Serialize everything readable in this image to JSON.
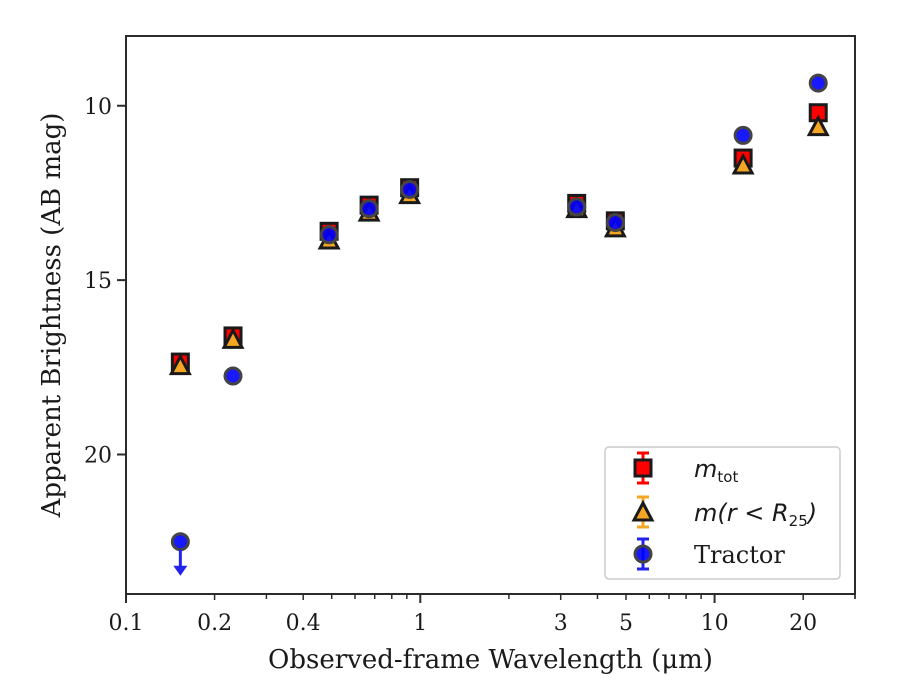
{
  "chart_data": {
    "type": "scatter",
    "xlabel": "Observed-frame Wavelength (μm)",
    "ylabel": "Apparent Brightness (AB mag)",
    "x_scale": "log",
    "xlim": [
      0.1,
      30
    ],
    "ylim": [
      24,
      8
    ],
    "y_inverted": true,
    "x_ticks": [
      {
        "value": 0.1,
        "label": "0.1"
      },
      {
        "value": 0.2,
        "label": "0.2"
      },
      {
        "value": 0.4,
        "label": "0.4"
      },
      {
        "value": 1,
        "label": "1"
      },
      {
        "value": 3,
        "label": "3"
      },
      {
        "value": 5,
        "label": "5"
      },
      {
        "value": 10,
        "label": "10"
      },
      {
        "value": 20,
        "label": "20"
      }
    ],
    "y_ticks": [
      {
        "value": 10,
        "label": "10"
      },
      {
        "value": 15,
        "label": "15"
      },
      {
        "value": 20,
        "label": "20"
      }
    ],
    "grid": false,
    "legend": "bottom-right",
    "series": [
      {
        "name": "m_tot",
        "label_main": "m",
        "label_sub": "tot",
        "marker": "square",
        "color": "#ff0000",
        "edge": "#1a1a1a",
        "x": [
          0.153,
          0.231,
          0.49,
          0.67,
          0.92,
          3.4,
          4.6,
          12.5,
          22.5
        ],
        "y": [
          17.35,
          16.6,
          13.6,
          12.85,
          12.35,
          12.8,
          13.3,
          11.5,
          10.2
        ]
      },
      {
        "name": "m(r < R25)",
        "label_main": "m(r < R",
        "label_sub": "25",
        "label_end": ")",
        "marker": "triangle",
        "color": "#f5a623",
        "edge": "#1a1a1a",
        "x": [
          0.153,
          0.231,
          0.49,
          0.67,
          0.92,
          3.4,
          4.6,
          12.5,
          22.5
        ],
        "y": [
          17.45,
          16.7,
          13.85,
          13.05,
          12.55,
          12.95,
          13.5,
          11.7,
          10.6
        ]
      },
      {
        "name": "Tractor",
        "label_main": "Tractor",
        "marker": "circle",
        "color": "#0000ff",
        "edge": "#444444",
        "x": [
          0.153,
          0.231,
          0.49,
          0.67,
          0.92,
          3.4,
          4.6,
          12.5,
          22.5
        ],
        "y": [
          22.5,
          17.75,
          13.7,
          12.95,
          12.4,
          12.9,
          13.35,
          10.85,
          9.35
        ],
        "upper_limit_index": 0
      }
    ]
  }
}
